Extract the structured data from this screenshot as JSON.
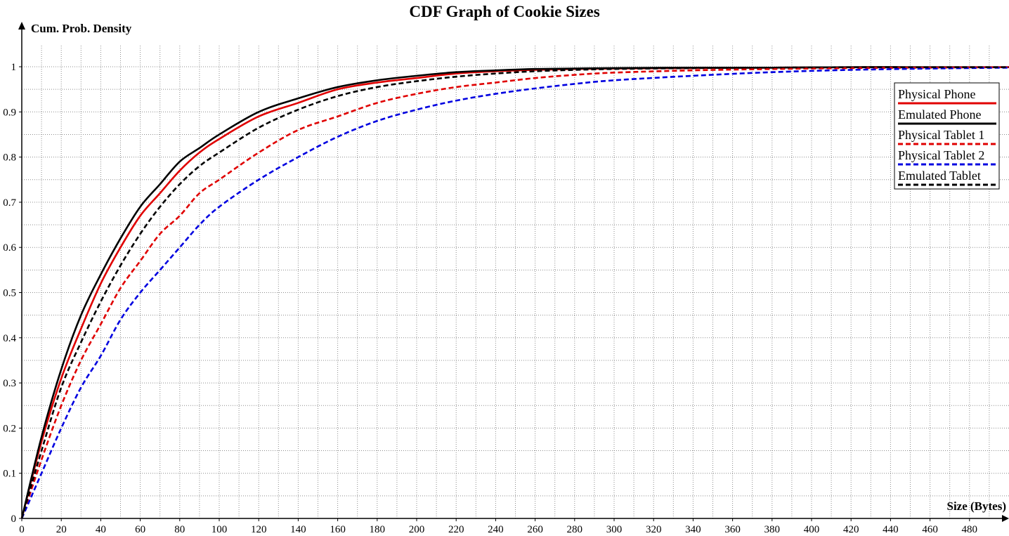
{
  "chart_data": {
    "type": "line",
    "title": "CDF Graph of Cookie Sizes",
    "xlabel": "Size (Bytes)",
    "ylabel": "Cum. Prob. Density",
    "xlim": [
      0,
      500
    ],
    "ylim": [
      0,
      1.05
    ],
    "x_ticks": [
      0,
      20,
      40,
      60,
      80,
      100,
      120,
      140,
      160,
      180,
      200,
      220,
      240,
      260,
      280,
      300,
      320,
      340,
      360,
      380,
      400,
      420,
      440,
      460,
      480
    ],
    "y_ticks": [
      0,
      0.1,
      0.2,
      0.3,
      0.4,
      0.5,
      0.6,
      0.7,
      0.8,
      0.9,
      1
    ],
    "y_tick_labels": [
      "0",
      "0.1",
      "0.2",
      "0.3",
      "0.4",
      "0.5",
      "0.6",
      "0.7",
      "0.8",
      "0.9",
      "1"
    ],
    "grid": true,
    "legend_position": "top-right",
    "x": [
      0,
      10,
      20,
      30,
      40,
      50,
      60,
      70,
      80,
      90,
      100,
      120,
      140,
      160,
      180,
      200,
      220,
      240,
      260,
      280,
      300,
      340,
      380,
      420,
      460,
      500
    ],
    "series": [
      {
        "name": "Physical Phone",
        "color": "#e00000",
        "dash": "solid",
        "values": [
          0,
          0.17,
          0.31,
          0.42,
          0.52,
          0.6,
          0.67,
          0.72,
          0.77,
          0.81,
          0.84,
          0.89,
          0.92,
          0.95,
          0.965,
          0.975,
          0.985,
          0.99,
          0.993,
          0.995,
          0.996,
          0.997,
          0.998,
          0.999,
          0.999,
          0.999
        ]
      },
      {
        "name": "Emulated Phone",
        "color": "#000000",
        "dash": "solid",
        "values": [
          0,
          0.18,
          0.33,
          0.45,
          0.54,
          0.62,
          0.69,
          0.74,
          0.79,
          0.82,
          0.85,
          0.9,
          0.93,
          0.955,
          0.97,
          0.98,
          0.988,
          0.992,
          0.995,
          0.996,
          0.997,
          0.998,
          0.998,
          0.999,
          0.999,
          0.999
        ]
      },
      {
        "name": "Physical Tablet 1",
        "color": "#e00000",
        "dash": "dashed",
        "values": [
          0,
          0.13,
          0.25,
          0.35,
          0.43,
          0.51,
          0.57,
          0.63,
          0.67,
          0.72,
          0.75,
          0.81,
          0.86,
          0.89,
          0.92,
          0.94,
          0.955,
          0.965,
          0.975,
          0.982,
          0.987,
          0.992,
          0.995,
          0.997,
          0.998,
          0.999
        ]
      },
      {
        "name": "Physical Tablet 2",
        "color": "#0000e0",
        "dash": "dashed",
        "values": [
          0,
          0.1,
          0.2,
          0.29,
          0.36,
          0.44,
          0.5,
          0.55,
          0.6,
          0.65,
          0.69,
          0.75,
          0.8,
          0.845,
          0.88,
          0.905,
          0.925,
          0.94,
          0.952,
          0.962,
          0.97,
          0.98,
          0.988,
          0.993,
          0.996,
          0.998
        ]
      },
      {
        "name": "Emulated Tablet",
        "color": "#000000",
        "dash": "dashed",
        "values": [
          0,
          0.15,
          0.29,
          0.39,
          0.48,
          0.56,
          0.63,
          0.69,
          0.74,
          0.78,
          0.81,
          0.865,
          0.905,
          0.935,
          0.955,
          0.968,
          0.978,
          0.985,
          0.99,
          0.993,
          0.995,
          0.997,
          0.998,
          0.999,
          0.999,
          0.999
        ]
      }
    ]
  }
}
